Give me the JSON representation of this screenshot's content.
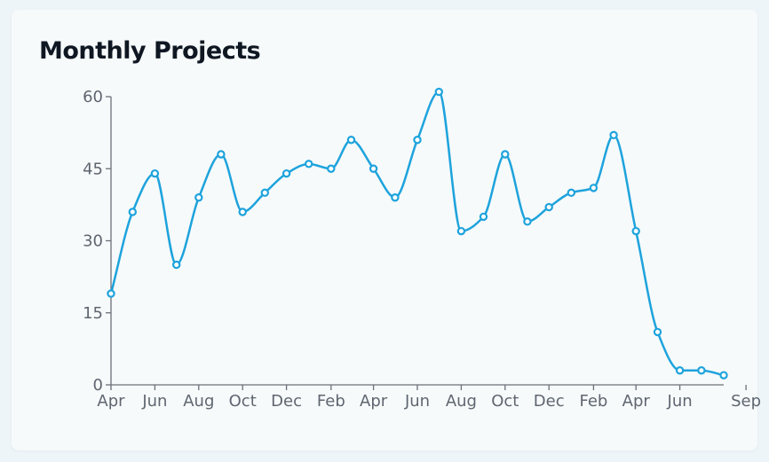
{
  "chart_data": {
    "type": "line",
    "title": "Monthly Projects",
    "xlabel": "",
    "ylabel": "",
    "ylim": [
      0,
      60
    ],
    "yticks": [
      0,
      15,
      30,
      45,
      60
    ],
    "grid": false,
    "line_color": "#1ea3dc",
    "x": [
      "2021-04",
      "2021-05",
      "2021-06",
      "2021-07",
      "2021-08",
      "2021-09",
      "2021-10",
      "2021-11",
      "2021-12",
      "2022-01",
      "2022-02",
      "2022-03",
      "2022-04",
      "2022-05",
      "2022-06",
      "2022-07",
      "2022-08",
      "2022-09",
      "2022-10",
      "2022-11",
      "2022-12",
      "2023-01",
      "2023-02",
      "2023-03",
      "2023-04",
      "2023-05",
      "2023-06",
      "2023-07",
      "2023-08"
    ],
    "values": [
      19,
      36,
      44,
      25,
      39,
      48,
      36,
      40,
      44,
      46,
      45,
      51,
      45,
      39,
      51,
      61,
      32,
      35,
      48,
      34,
      37,
      40,
      41,
      52,
      32,
      11,
      3,
      3,
      2
    ],
    "x_tick_labels": [
      {
        "label": "Apr",
        "x": "2021-04"
      },
      {
        "label": "Jun",
        "x": "2021-06"
      },
      {
        "label": "Aug",
        "x": "2021-08"
      },
      {
        "label": "Oct",
        "x": "2021-10"
      },
      {
        "label": "Dec",
        "x": "2021-12"
      },
      {
        "label": "Feb",
        "x": "2022-02"
      },
      {
        "label": "Apr",
        "x": "2022-04"
      },
      {
        "label": "Jun",
        "x": "2022-06"
      },
      {
        "label": "Aug",
        "x": "2022-08"
      },
      {
        "label": "Oct",
        "x": "2022-10"
      },
      {
        "label": "Dec",
        "x": "2022-12"
      },
      {
        "label": "Feb",
        "x": "2023-02"
      },
      {
        "label": "Apr",
        "x": "2023-04"
      },
      {
        "label": "Jun",
        "x": "2023-06"
      },
      {
        "label": "Sep",
        "x": "2023-09"
      }
    ]
  }
}
